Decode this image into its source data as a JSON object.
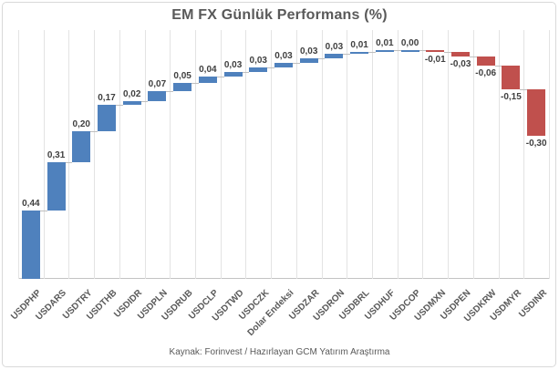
{
  "header": {
    "title": "EM FX Günlük Performans (%)"
  },
  "footer": {
    "source": "Kaynak: Forinvest / Hazırlayan GCM Yatırım Araştırma"
  },
  "colors": {
    "positive_bar": "#4F81BD",
    "negative_bar": "#C0504D"
  },
  "chart_data": {
    "type": "bar",
    "subtype": "waterfall-cumulative",
    "title": "EM FX Günlük Performans (%)",
    "xlabel": "",
    "ylabel": "",
    "ylim": [
      0,
      1.6
    ],
    "grid": "vertical category gridlines only",
    "legend": "none",
    "value_format": "turkish decimal comma",
    "categories": [
      "USDPHP",
      "USDARS",
      "USDTRY",
      "USDTHB",
      "USDIDR",
      "USDPLN",
      "USDRUB",
      "USDCLP",
      "USDTWD",
      "USDCZK",
      "Dolar Endeksi",
      "USDZAR",
      "USDRON",
      "USDBRL",
      "USDHUF",
      "USDCOP",
      "USDMXN",
      "USDPEN",
      "USDKRW",
      "USDMYR",
      "USDINR"
    ],
    "values": [
      0.44,
      0.31,
      0.2,
      0.17,
      0.02,
      0.07,
      0.05,
      0.04,
      0.03,
      0.03,
      0.03,
      0.03,
      0.03,
      0.01,
      0.01,
      0.0,
      -0.01,
      -0.03,
      -0.06,
      -0.15,
      -0.3
    ],
    "value_labels": [
      "0,44",
      "0,31",
      "0,20",
      "0,17",
      "0,02",
      "0,07",
      "0,05",
      "0,04",
      "0,03",
      "0,03",
      "0,03",
      "0,03",
      "0,03",
      "0,01",
      "0,01",
      "0,00",
      "-0,01",
      "-0,03",
      "-0,06",
      "-0,15",
      "-0,30"
    ],
    "bar_colors": {
      "positive": "#4F81BD",
      "negative": "#C0504D"
    }
  }
}
